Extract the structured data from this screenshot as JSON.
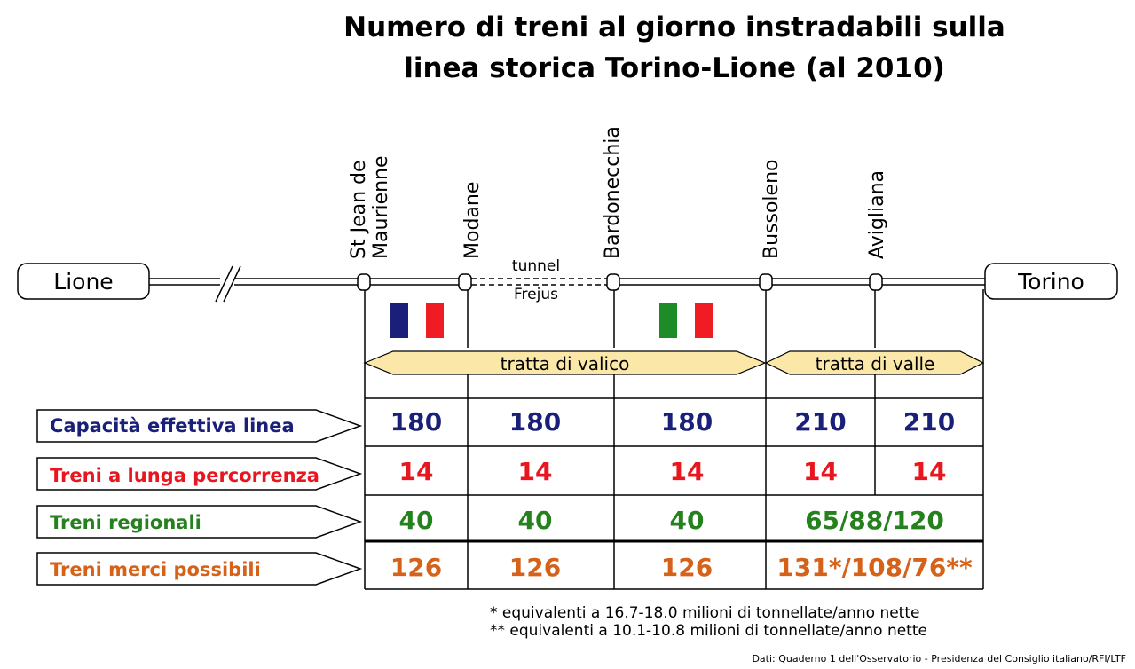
{
  "title": {
    "line1": "Numero di treni al giorno instradabili sulla",
    "line2": "linea storica Torino-Lione (al 2010)"
  },
  "endpoints": {
    "left": "Lione",
    "right": "Torino"
  },
  "stations": [
    {
      "line1": "St Jean de",
      "line2": "Maurienne"
    },
    {
      "line1": "Modane",
      "line2": ""
    },
    {
      "line1": "Bardonecchia",
      "line2": ""
    },
    {
      "line1": "Bussoleno",
      "line2": ""
    },
    {
      "line1": "Avigliana",
      "line2": ""
    }
  ],
  "tunnel": {
    "line1": "tunnel",
    "line2": "Frejus"
  },
  "flags": [
    {
      "country": "France",
      "colors": [
        "#1c1f7a",
        "#ffffff",
        "#ef1c24"
      ]
    },
    {
      "country": "Italy",
      "colors": [
        "#1d8c26",
        "#ffffff",
        "#ef1c24"
      ]
    }
  ],
  "sections": {
    "valico": "tratta di valico",
    "valle": "tratta di valle"
  },
  "rows": [
    {
      "label": "Capacità effettiva linea",
      "color": "#1a1f78",
      "values": [
        "180",
        "180",
        "180",
        "210",
        "210"
      ]
    },
    {
      "label": "Treni a lunga percorrenza",
      "color": "#e8161f",
      "values": [
        "14",
        "14",
        "14",
        "14",
        "14"
      ]
    },
    {
      "label": "Treni regionali",
      "color": "#25801e",
      "values": [
        "40",
        "40",
        "40",
        "65/88/120"
      ]
    },
    {
      "label": "Treni merci possibili",
      "color": "#d6621a",
      "values": [
        "126",
        "126",
        "126",
        "131*/108/76**"
      ]
    }
  ],
  "notes": {
    "note1": "*  equivalenti a 16.7-18.0 milioni di tonnellate/anno nette",
    "note2": "** equivalenti a 10.1-10.8 milioni di tonnellate/anno nette"
  },
  "source": "Dati:  Quaderno 1 dell'Osservatorio - Presidenza del Consiglio italiano/RFI/LTF"
}
